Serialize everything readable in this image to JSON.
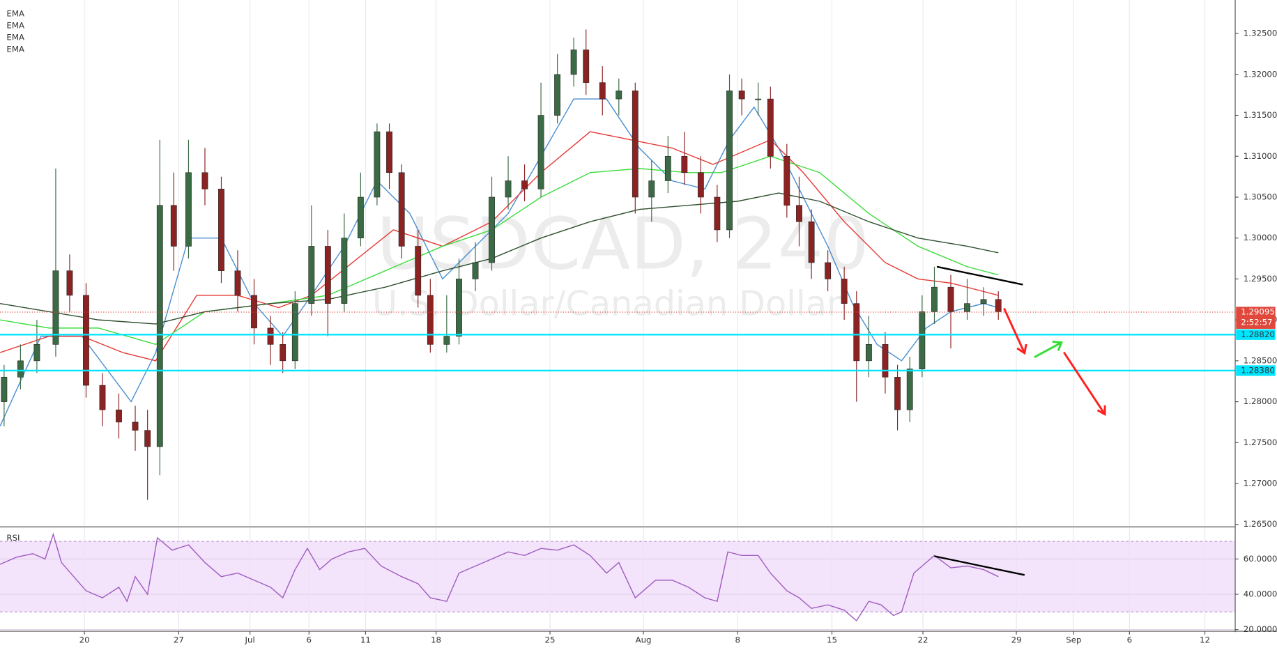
{
  "chart_data": [
    {
      "type": "candlestick",
      "title": "USDCAD, 240",
      "subtitle": "U.S. Dollar/Canadian Dollar",
      "xlim": [
        0,
        150.7
      ],
      "ylim": [
        1.2648,
        1.3286
      ],
      "yticks": [
        {
          "value": 1.265,
          "label": "1.26500"
        },
        {
          "value": 1.27,
          "label": "1.27000"
        },
        {
          "value": 1.275,
          "label": "1.27500"
        },
        {
          "value": 1.28,
          "label": "1.28000"
        },
        {
          "value": 1.285,
          "label": "1.28500"
        },
        {
          "value": 1.29,
          "label": "1.29000"
        },
        {
          "value": 1.295,
          "label": "1.29500"
        },
        {
          "value": 1.3,
          "label": "1.30000"
        },
        {
          "value": 1.305,
          "label": "1.30500"
        },
        {
          "value": 1.31,
          "label": "1.31000"
        },
        {
          "value": 1.315,
          "label": "1.31500"
        },
        {
          "value": 1.32,
          "label": "1.32000"
        },
        {
          "value": 1.325,
          "label": "1.32500"
        }
      ],
      "grid": true,
      "up_color": "#3b6b45",
      "down_color": "#8b2323",
      "x": [
        0.5,
        2.5,
        4.5,
        6.8,
        8.5,
        10.5,
        12.5,
        14.5,
        16.5,
        18,
        19.5,
        21.2,
        23,
        25,
        27,
        29,
        31,
        33,
        34.5,
        36,
        38,
        40,
        42,
        44,
        46,
        47.5,
        49,
        51,
        52.5,
        54.5,
        56,
        58,
        60,
        62,
        64,
        66,
        68,
        70,
        71.5,
        73.5,
        75.5,
        77.5,
        79.5,
        81.5,
        83.5,
        85.5,
        87.5,
        89,
        90.5,
        92.5,
        94,
        96,
        97.5,
        99,
        101,
        103,
        104.5,
        106,
        108,
        109.5,
        111,
        112.5,
        114,
        116,
        118,
        120,
        121.8
      ],
      "open": [
        1.28,
        1.283,
        1.285,
        1.287,
        1.296,
        1.293,
        1.282,
        1.279,
        1.2775,
        1.2765,
        1.2745,
        1.304,
        1.299,
        1.308,
        1.306,
        1.296,
        1.293,
        1.289,
        1.287,
        1.285,
        1.292,
        1.299,
        1.292,
        1.3,
        1.305,
        1.313,
        1.308,
        1.299,
        1.293,
        1.287,
        1.288,
        1.295,
        1.297,
        1.305,
        1.307,
        1.306,
        1.315,
        1.32,
        1.323,
        1.319,
        1.317,
        1.318,
        1.305,
        1.307,
        1.31,
        1.308,
        1.305,
        1.301,
        1.318,
        1.317,
        1.317,
        1.31,
        1.304,
        1.302,
        1.297,
        1.295,
        1.292,
        1.285,
        1.287,
        1.283,
        1.279,
        1.284,
        1.291,
        1.294,
        1.291,
        1.292,
        1.2925
      ],
      "high": [
        1.2845,
        1.287,
        1.29,
        1.3085,
        1.298,
        1.2945,
        1.2835,
        1.281,
        1.2795,
        1.279,
        1.312,
        1.308,
        1.312,
        1.311,
        1.3075,
        1.2985,
        1.295,
        1.2905,
        1.2885,
        1.2935,
        1.304,
        1.301,
        1.303,
        1.308,
        1.314,
        1.314,
        1.309,
        1.301,
        1.295,
        1.293,
        1.2975,
        1.2995,
        1.3075,
        1.31,
        1.309,
        1.319,
        1.3225,
        1.3245,
        1.3255,
        1.321,
        1.3195,
        1.319,
        1.3095,
        1.3125,
        1.313,
        1.31,
        1.3065,
        1.32,
        1.3195,
        1.319,
        1.3185,
        1.3115,
        1.3075,
        1.3035,
        1.2985,
        1.2965,
        1.2935,
        1.2905,
        1.2885,
        1.2845,
        1.2855,
        1.293,
        1.2965,
        1.2955,
        1.295,
        1.294,
        1.2935
      ],
      "low": [
        1.277,
        1.2815,
        1.2835,
        1.2855,
        1.291,
        1.2805,
        1.277,
        1.2755,
        1.274,
        1.268,
        1.271,
        1.296,
        1.2975,
        1.304,
        1.2945,
        1.291,
        1.287,
        1.2845,
        1.2835,
        1.284,
        1.2905,
        1.288,
        1.291,
        1.299,
        1.304,
        1.306,
        1.2975,
        1.2915,
        1.286,
        1.286,
        1.287,
        1.2935,
        1.296,
        1.3035,
        1.3045,
        1.305,
        1.314,
        1.3185,
        1.3175,
        1.315,
        1.315,
        1.303,
        1.302,
        1.3055,
        1.3065,
        1.303,
        1.2995,
        1.3,
        1.315,
        1.315,
        1.3085,
        1.3025,
        1.299,
        1.295,
        1.2935,
        1.29,
        1.28,
        1.283,
        1.281,
        1.2765,
        1.2775,
        1.283,
        1.2895,
        1.2865,
        1.29,
        1.2905,
        1.29
      ],
      "close": [
        1.283,
        1.285,
        1.287,
        1.296,
        1.293,
        1.282,
        1.279,
        1.2775,
        1.2765,
        1.2745,
        1.304,
        1.299,
        1.308,
        1.306,
        1.296,
        1.293,
        1.289,
        1.287,
        1.285,
        1.292,
        1.299,
        1.292,
        1.3,
        1.305,
        1.313,
        1.308,
        1.299,
        1.293,
        1.287,
        1.288,
        1.295,
        1.297,
        1.305,
        1.307,
        1.306,
        1.315,
        1.32,
        1.323,
        1.319,
        1.317,
        1.318,
        1.305,
        1.307,
        1.31,
        1.308,
        1.305,
        1.301,
        1.318,
        1.317,
        1.317,
        1.31,
        1.304,
        1.302,
        1.297,
        1.295,
        1.292,
        1.285,
        1.287,
        1.283,
        1.279,
        1.284,
        1.291,
        1.294,
        1.291,
        1.292,
        1.2925,
        1.291
      ],
      "series": [
        {
          "name": "EMA",
          "color": "#4a8fd1",
          "x": [
            0,
            5,
            10,
            16,
            19,
            23,
            27,
            31,
            34.5,
            38,
            42,
            46,
            50,
            54,
            58,
            62,
            66,
            70,
            74,
            78,
            82,
            86,
            89,
            92,
            95,
            98,
            101,
            104,
            107,
            110,
            113,
            116,
            120,
            121.8
          ],
          "values": [
            1.277,
            1.288,
            1.288,
            1.28,
            1.286,
            1.3,
            1.3,
            1.292,
            1.288,
            1.293,
            1.299,
            1.307,
            1.303,
            1.295,
            1.299,
            1.303,
            1.31,
            1.317,
            1.317,
            1.311,
            1.307,
            1.306,
            1.312,
            1.316,
            1.311,
            1.305,
            1.299,
            1.292,
            1.287,
            1.285,
            1.289,
            1.291,
            1.292,
            1.2915
          ]
        },
        {
          "name": "EMA",
          "color": "#e53935",
          "x": [
            0,
            6,
            10,
            15,
            19,
            24,
            29,
            34,
            38,
            43,
            48,
            54,
            60,
            66,
            72,
            77,
            82,
            87,
            94,
            98,
            103,
            108,
            112,
            116,
            121.8
          ],
          "values": [
            1.286,
            1.288,
            1.288,
            1.286,
            1.285,
            1.293,
            1.293,
            1.2915,
            1.293,
            1.297,
            1.301,
            1.299,
            1.302,
            1.308,
            1.313,
            1.312,
            1.311,
            1.309,
            1.312,
            1.308,
            1.302,
            1.297,
            1.295,
            1.2945,
            1.293
          ]
        },
        {
          "name": "EMA",
          "color": "#3ddc3d",
          "x": [
            0,
            6,
            12,
            19,
            25,
            33,
            40,
            47,
            54,
            60,
            66,
            72,
            78,
            84,
            88,
            94,
            100,
            106,
            112,
            118,
            121.8
          ],
          "values": [
            1.29,
            1.289,
            1.289,
            1.287,
            1.291,
            1.292,
            1.293,
            1.296,
            1.299,
            1.301,
            1.305,
            1.308,
            1.3085,
            1.308,
            1.308,
            1.31,
            1.308,
            1.303,
            1.299,
            1.2965,
            1.2955
          ]
        },
        {
          "name": "EMA",
          "color": "#2f4f2f",
          "x": [
            0,
            6,
            12,
            19,
            25,
            33,
            40,
            47,
            54,
            60,
            66,
            72,
            78,
            84,
            90,
            95,
            100,
            106,
            112,
            118,
            121.8
          ],
          "values": [
            1.292,
            1.291,
            1.29,
            1.2895,
            1.291,
            1.292,
            1.2925,
            1.294,
            1.296,
            1.2975,
            1.3,
            1.302,
            1.3035,
            1.304,
            1.3045,
            1.3055,
            1.3045,
            1.302,
            1.3,
            1.299,
            1.2982
          ]
        }
      ],
      "hlines": [
        {
          "value": 1.2882,
          "label": "1.28820",
          "color": "#00e5ff"
        },
        {
          "value": 1.2838,
          "label": "1.28380",
          "color": "#00e5ff"
        }
      ],
      "last_price": {
        "value": 1.29095,
        "label": "1.29095",
        "color": "#e0483c"
      },
      "countdown": "2:52:57"
    },
    {
      "type": "line",
      "title": "RSI",
      "xlim": [
        0,
        150.7
      ],
      "ylim": [
        19.5,
        77.3
      ],
      "band": [
        30,
        70
      ],
      "band_color": "#f3e3fb",
      "yticks": [
        {
          "value": 20,
          "label": "20.0000"
        },
        {
          "value": 40,
          "label": "40.0000"
        },
        {
          "value": 60,
          "label": "60.0000"
        }
      ],
      "xticks": [
        {
          "value": 10.3,
          "label": "20"
        },
        {
          "value": 21.8,
          "label": "27"
        },
        {
          "value": 30.5,
          "label": "Jul"
        },
        {
          "value": 37.7,
          "label": "6"
        },
        {
          "value": 44.6,
          "label": "11"
        },
        {
          "value": 53.2,
          "label": "18"
        },
        {
          "value": 67.1,
          "label": "25"
        },
        {
          "value": 78.5,
          "label": "Aug"
        },
        {
          "value": 90,
          "label": "8"
        },
        {
          "value": 101.5,
          "label": "15"
        },
        {
          "value": 112.6,
          "label": "22"
        },
        {
          "value": 124,
          "label": "29"
        },
        {
          "value": 131,
          "label": "Sep"
        },
        {
          "value": 137.8,
          "label": "6"
        },
        {
          "value": 147,
          "label": "12"
        }
      ],
      "color": "#a05cc0",
      "x": [
        0,
        2,
        4,
        5.5,
        6.5,
        7.5,
        9,
        10.5,
        12.5,
        14.5,
        15.5,
        16.5,
        18,
        19.2,
        21,
        23,
        25,
        27,
        29,
        31,
        33,
        34.5,
        36,
        37.5,
        39,
        40.5,
        42.5,
        44.5,
        46.5,
        49,
        51,
        52.5,
        54.5,
        56,
        58,
        60,
        62,
        64,
        66,
        68,
        70,
        72,
        74,
        75.5,
        77.5,
        80,
        82,
        84,
        86,
        87.5,
        88.8,
        90.5,
        92.5,
        94,
        96,
        97.5,
        99,
        101,
        103,
        104.5,
        106,
        107.5,
        109,
        110,
        111.5,
        112.5,
        114,
        116,
        118,
        120,
        121.8
      ],
      "values": [
        57,
        61,
        63,
        60,
        74,
        58,
        50,
        42,
        38,
        44,
        36,
        50,
        40,
        72,
        65,
        68,
        58,
        50,
        52,
        48,
        44,
        38,
        54,
        66,
        54,
        60,
        64,
        66,
        56,
        50,
        46,
        38,
        36,
        52,
        56,
        60,
        64,
        62,
        66,
        65,
        68,
        62,
        52,
        58,
        38,
        48,
        48,
        44,
        38,
        36,
        64,
        62,
        62,
        52,
        42,
        38,
        32,
        34,
        31,
        25,
        36,
        34,
        28,
        30,
        52,
        56,
        62,
        55,
        56,
        54,
        50
      ]
    }
  ]
}
